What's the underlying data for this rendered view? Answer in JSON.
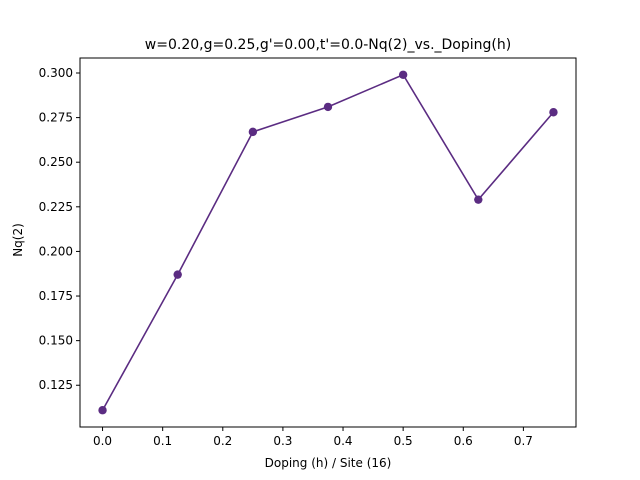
{
  "chart_data": {
    "type": "line",
    "title": "w=0.20,g=0.25,g'=0.00,t'=0.0-Nq(2)_vs._Doping(h)",
    "xlabel": "Doping (h) / Site (16)",
    "ylabel": "Nq(2)",
    "x": [
      0.0,
      0.125,
      0.25,
      0.375,
      0.5,
      0.625,
      0.75
    ],
    "series": [
      {
        "values": [
          0.111,
          0.187,
          0.267,
          0.281,
          0.299,
          0.229,
          0.278
        ],
        "color": "#5b2c82"
      }
    ],
    "xlim": [
      -0.0375,
      0.7875
    ],
    "ylim": [
      0.1016,
      0.3084
    ],
    "xticks": [
      0.0,
      0.1,
      0.2,
      0.3,
      0.4,
      0.5,
      0.6,
      0.7
    ],
    "xtick_labels": [
      "0.0",
      "0.1",
      "0.2",
      "0.3",
      "0.4",
      "0.5",
      "0.6",
      "0.7"
    ],
    "yticks": [
      0.125,
      0.15,
      0.175,
      0.2,
      0.225,
      0.25,
      0.275,
      0.3
    ],
    "ytick_labels": [
      "0.125",
      "0.150",
      "0.175",
      "0.200",
      "0.225",
      "0.250",
      "0.275",
      "0.300"
    ],
    "grid": false,
    "markers": "circle"
  }
}
